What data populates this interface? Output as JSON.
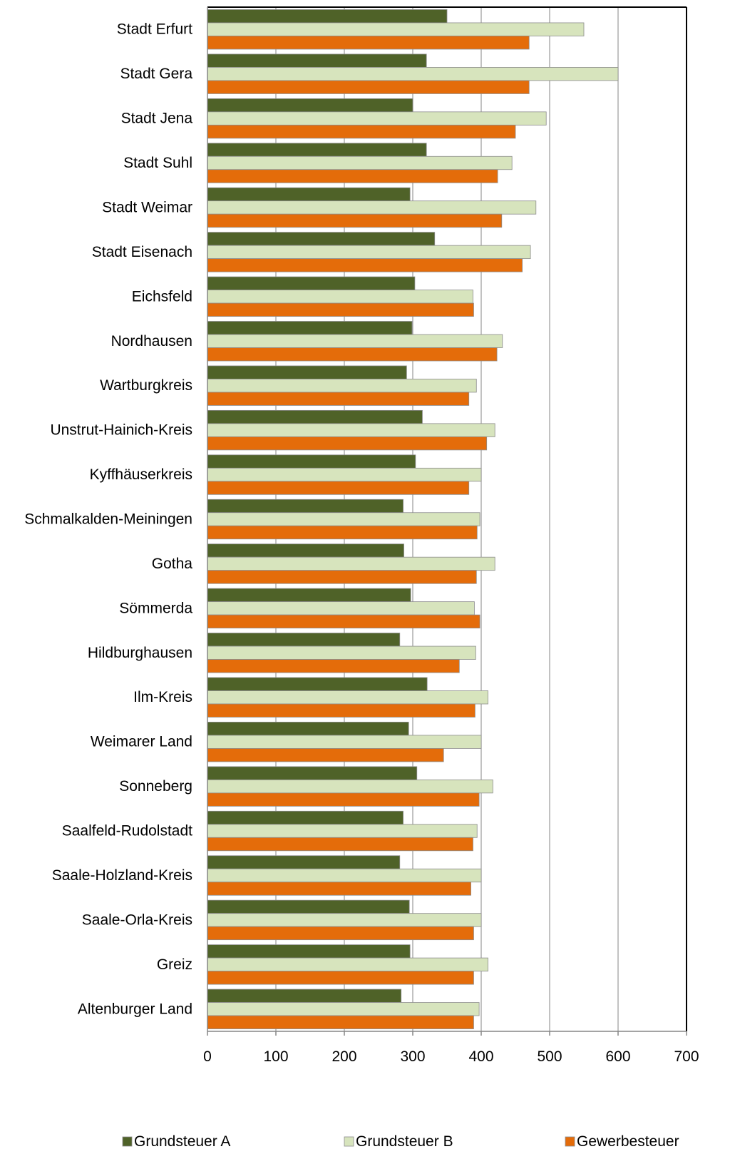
{
  "chart_data": {
    "type": "bar",
    "orientation": "horizontal",
    "categories": [
      "Stadt Erfurt",
      "Stadt Gera",
      "Stadt Jena",
      "Stadt Suhl",
      "Stadt Weimar",
      "Stadt Eisenach",
      "Eichsfeld",
      "Nordhausen",
      "Wartburgkreis",
      "Unstrut-Hainich-Kreis",
      "Kyffhäuserkreis",
      "Schmalkalden-Meiningen",
      "Gotha",
      "Sömmerda",
      "Hildburghausen",
      "Ilm-Kreis",
      "Weimarer Land",
      "Sonneberg",
      "Saalfeld-Rudolstadt",
      "Saale-Holzland-Kreis",
      "Saale-Orla-Kreis",
      "Greiz",
      "Altenburger Land"
    ],
    "series": [
      {
        "name": "Grundsteuer A",
        "color": "#4f6228",
        "values": [
          350,
          320,
          300,
          320,
          296,
          332,
          303,
          299,
          291,
          314,
          304,
          286,
          287,
          297,
          281,
          321,
          294,
          306,
          286,
          281,
          295,
          296,
          283
        ]
      },
      {
        "name": "Grundsteuer B",
        "color": "#d7e4bd",
        "values": [
          550,
          600,
          495,
          445,
          480,
          472,
          388,
          431,
          393,
          420,
          400,
          398,
          420,
          390,
          392,
          410,
          400,
          417,
          394,
          400,
          400,
          410,
          397
        ]
      },
      {
        "name": "Gewerbesteuer",
        "color": "#e46c0a",
        "values": [
          470,
          470,
          450,
          424,
          430,
          460,
          389,
          423,
          382,
          408,
          382,
          394,
          393,
          398,
          368,
          391,
          345,
          397,
          388,
          385,
          389,
          389,
          389
        ]
      }
    ],
    "xlim": [
      0,
      700
    ],
    "xticks": [
      "0",
      "100",
      "200",
      "300",
      "400",
      "500",
      "600",
      "700"
    ],
    "grid": true,
    "legend": "bottom"
  }
}
